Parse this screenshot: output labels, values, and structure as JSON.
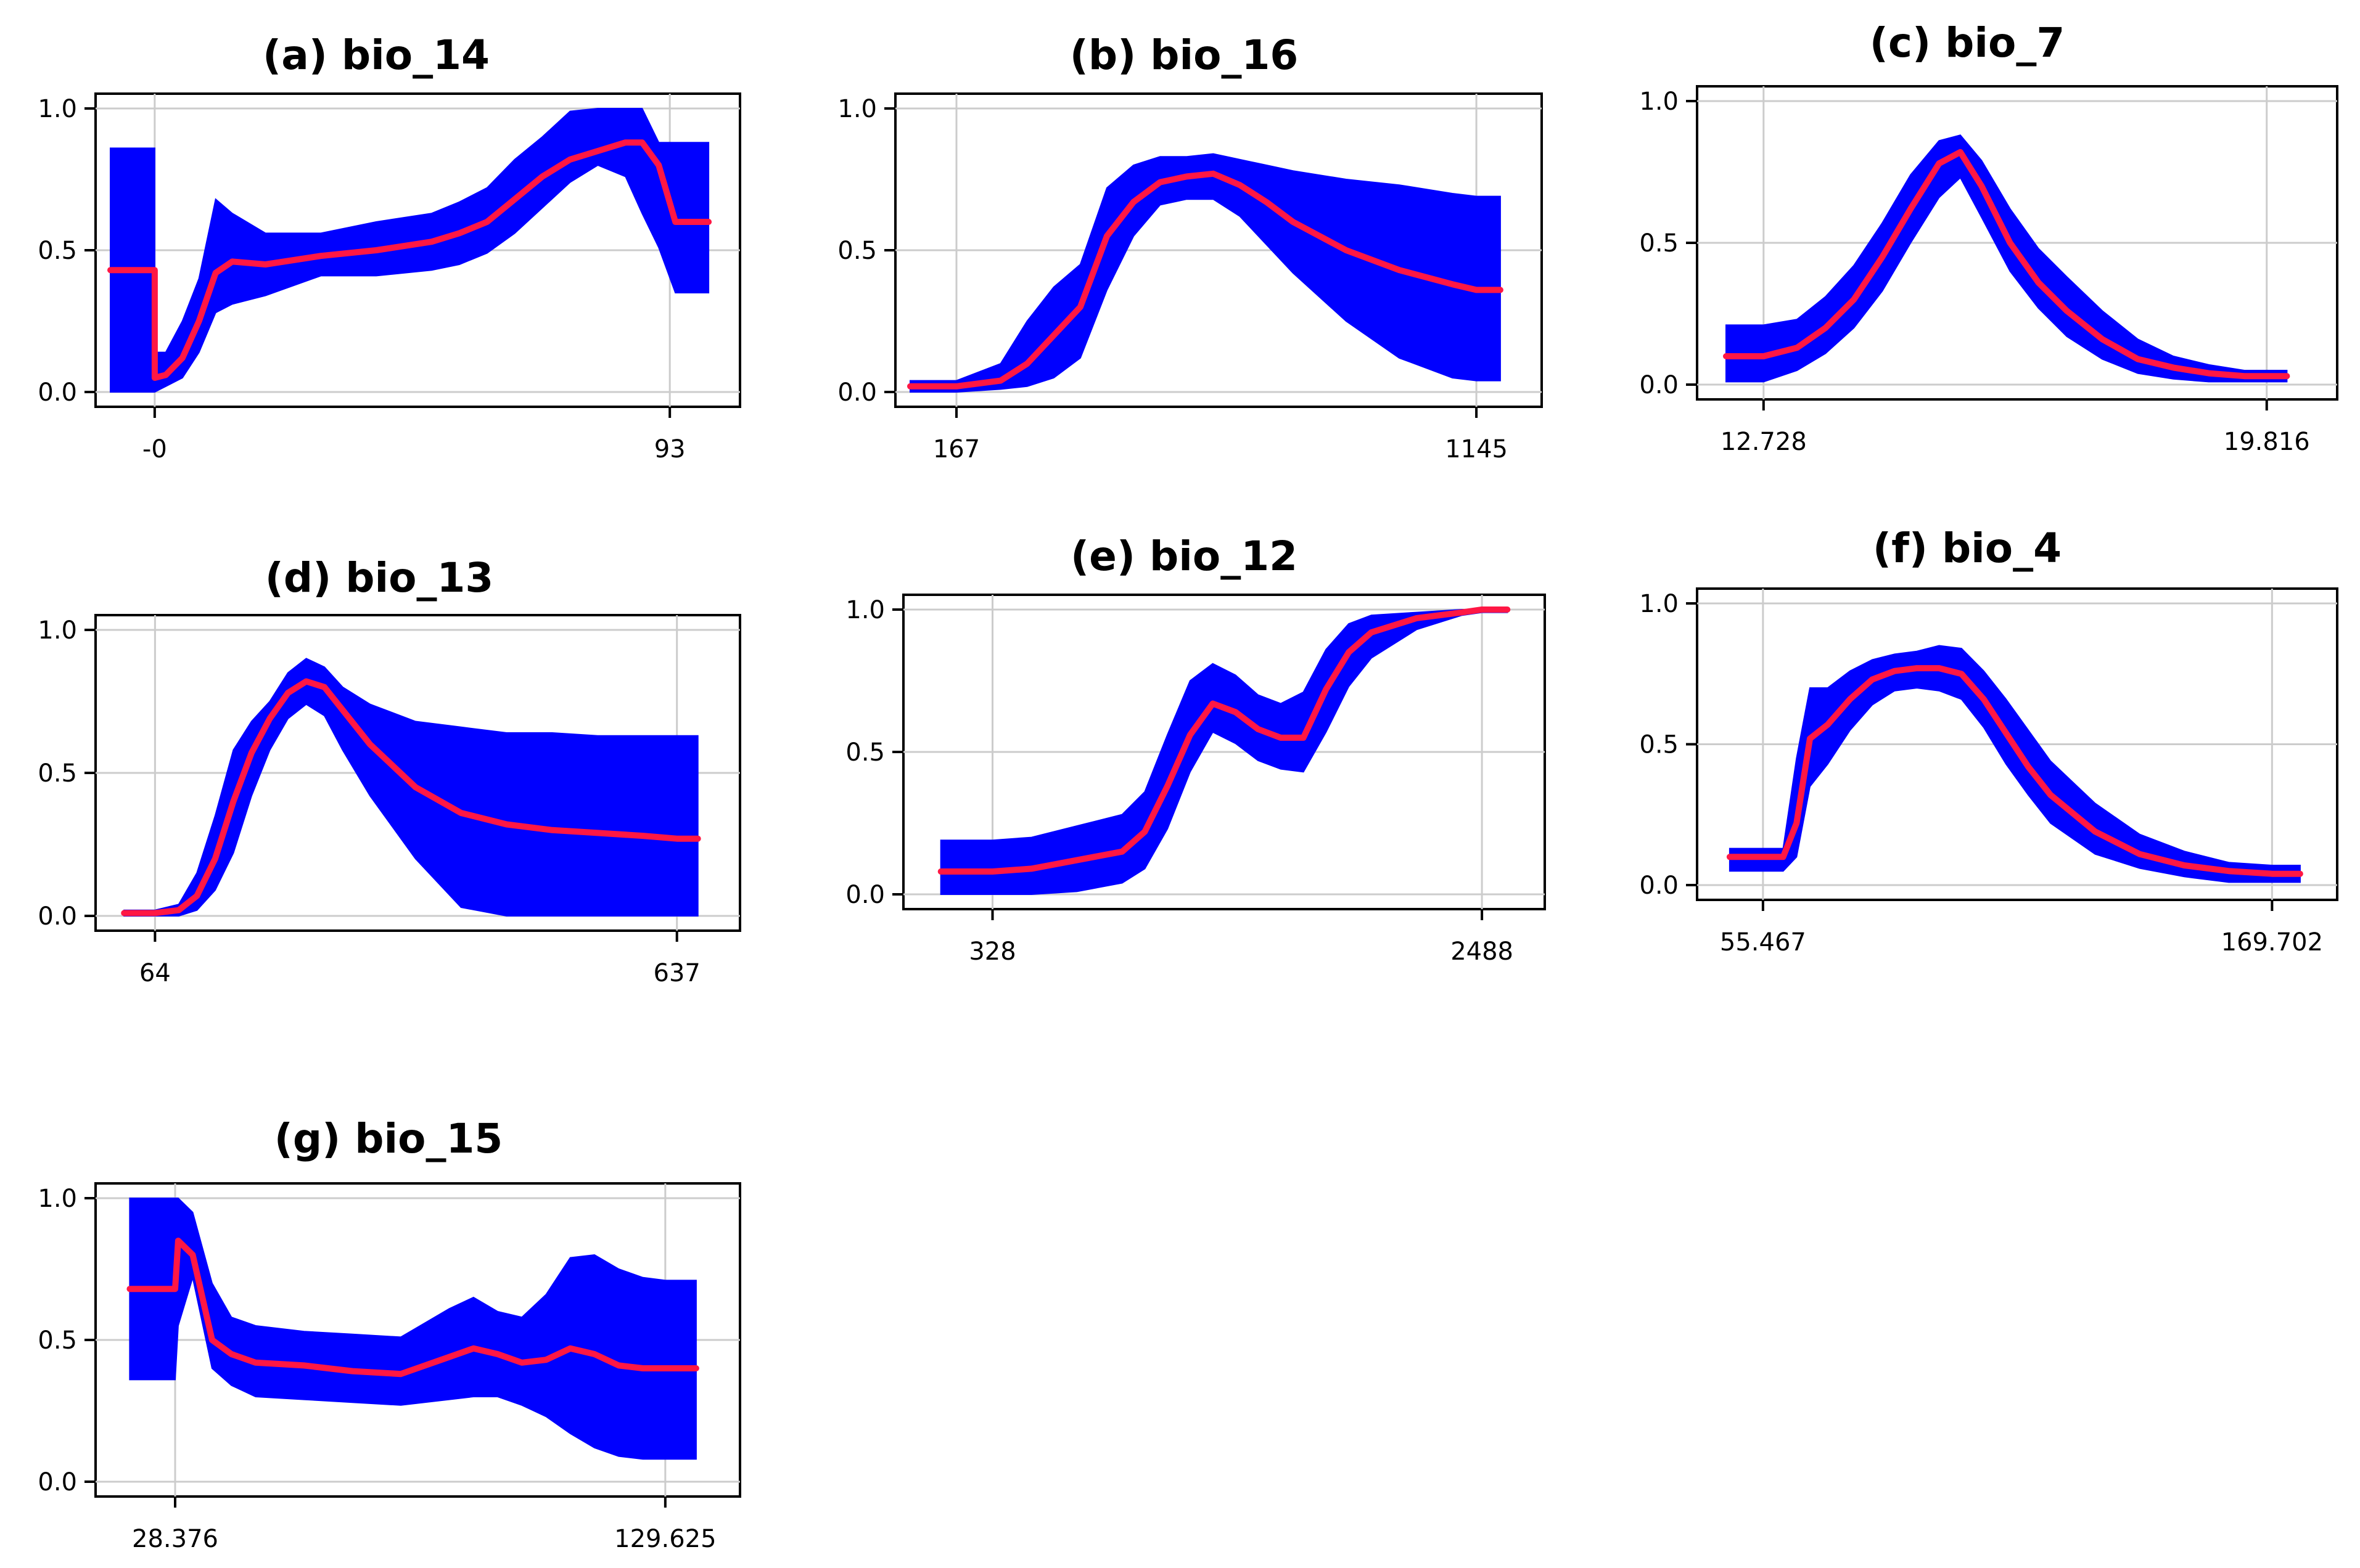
{
  "colors": {
    "band": "#0000ff",
    "line": "#ff1744",
    "grid": "#cccccc",
    "axis": "#000000"
  },
  "chart_data": [
    {
      "type": "area",
      "title": "(a) bio_14",
      "yticks": [
        "0.0",
        "0.5",
        "1.0"
      ],
      "xticks": [
        {
          "label": "-0",
          "value": 0
        },
        {
          "label": "93",
          "value": 93
        }
      ],
      "xlim": [
        -8,
        103
      ],
      "ylim": [
        0,
        1
      ],
      "x": [
        -8,
        0,
        0.01,
        2,
        5,
        8,
        11,
        14,
        20,
        30,
        40,
        50,
        55,
        60,
        65,
        70,
        75,
        80,
        85,
        88,
        91,
        94,
        100
      ],
      "mean": [
        0.43,
        0.43,
        0.05,
        0.06,
        0.12,
        0.25,
        0.42,
        0.46,
        0.45,
        0.48,
        0.5,
        0.53,
        0.56,
        0.6,
        0.68,
        0.76,
        0.82,
        0.85,
        0.88,
        0.88,
        0.8,
        0.6,
        0.6
      ],
      "upper": [
        0.86,
        0.86,
        0.14,
        0.14,
        0.25,
        0.4,
        0.68,
        0.63,
        0.56,
        0.56,
        0.6,
        0.63,
        0.67,
        0.72,
        0.82,
        0.9,
        0.99,
        1.0,
        1.0,
        1.0,
        0.88,
        0.88,
        0.88
      ],
      "lower": [
        0.0,
        0.0,
        0.0,
        0.02,
        0.05,
        0.14,
        0.28,
        0.31,
        0.34,
        0.41,
        0.41,
        0.43,
        0.45,
        0.49,
        0.56,
        0.65,
        0.74,
        0.8,
        0.76,
        0.63,
        0.51,
        0.35,
        0.35
      ]
    },
    {
      "type": "area",
      "title": "(b) bio_16",
      "yticks": [
        "0.0",
        "0.5",
        "1.0"
      ],
      "xticks": [
        {
          "label": "167",
          "value": 167
        },
        {
          "label": "1145",
          "value": 1145
        }
      ],
      "xlim": [
        80,
        1240
      ],
      "ylim": [
        0,
        1
      ],
      "x": [
        80,
        167,
        250,
        300,
        350,
        400,
        450,
        500,
        550,
        600,
        650,
        700,
        750,
        800,
        900,
        1000,
        1100,
        1145,
        1190
      ],
      "mean": [
        0.02,
        0.02,
        0.04,
        0.1,
        0.2,
        0.3,
        0.55,
        0.67,
        0.74,
        0.76,
        0.77,
        0.73,
        0.67,
        0.6,
        0.5,
        0.43,
        0.38,
        0.36,
        0.36
      ],
      "upper": [
        0.04,
        0.04,
        0.1,
        0.25,
        0.37,
        0.45,
        0.72,
        0.8,
        0.83,
        0.83,
        0.84,
        0.82,
        0.8,
        0.78,
        0.75,
        0.73,
        0.7,
        0.69,
        0.69
      ],
      "lower": [
        0.0,
        0.0,
        0.01,
        0.02,
        0.05,
        0.12,
        0.36,
        0.55,
        0.66,
        0.68,
        0.68,
        0.62,
        0.52,
        0.42,
        0.25,
        0.12,
        0.05,
        0.04,
        0.04
      ]
    },
    {
      "type": "area",
      "title": "(c) bio_7",
      "yticks": [
        "0.0",
        "0.5",
        "1.0"
      ],
      "xticks": [
        {
          "label": "12.728",
          "value": 12.728
        },
        {
          "label": "19.816",
          "value": 19.816
        }
      ],
      "xlim": [
        12.0,
        20.6
      ],
      "ylim": [
        0,
        1
      ],
      "x": [
        12.2,
        12.728,
        13.2,
        13.6,
        14.0,
        14.4,
        14.8,
        15.2,
        15.5,
        15.8,
        16.2,
        16.6,
        17.0,
        17.5,
        18.0,
        18.5,
        19.0,
        19.5,
        20.1
      ],
      "mean": [
        0.1,
        0.1,
        0.13,
        0.2,
        0.3,
        0.45,
        0.62,
        0.78,
        0.82,
        0.7,
        0.5,
        0.36,
        0.26,
        0.16,
        0.09,
        0.06,
        0.04,
        0.03,
        0.03
      ],
      "upper": [
        0.21,
        0.21,
        0.23,
        0.31,
        0.42,
        0.57,
        0.74,
        0.86,
        0.88,
        0.79,
        0.62,
        0.48,
        0.38,
        0.26,
        0.16,
        0.1,
        0.07,
        0.05,
        0.05
      ],
      "lower": [
        0.01,
        0.01,
        0.05,
        0.11,
        0.2,
        0.33,
        0.5,
        0.66,
        0.73,
        0.59,
        0.4,
        0.27,
        0.17,
        0.09,
        0.04,
        0.02,
        0.01,
        0.01,
        0.01
      ]
    },
    {
      "type": "area",
      "title": "(d) bio_13",
      "yticks": [
        "0.0",
        "0.5",
        "1.0"
      ],
      "xticks": [
        {
          "label": "64",
          "value": 64
        },
        {
          "label": "637",
          "value": 637
        }
      ],
      "xlim": [
        15,
        690
      ],
      "ylim": [
        0,
        1
      ],
      "x": [
        30,
        64,
        90,
        110,
        130,
        150,
        170,
        190,
        210,
        230,
        250,
        270,
        300,
        350,
        400,
        450,
        500,
        550,
        600,
        637,
        660
      ],
      "mean": [
        0.01,
        0.01,
        0.02,
        0.07,
        0.2,
        0.4,
        0.57,
        0.69,
        0.78,
        0.82,
        0.8,
        0.72,
        0.6,
        0.45,
        0.36,
        0.32,
        0.3,
        0.29,
        0.28,
        0.27,
        0.27
      ],
      "upper": [
        0.02,
        0.02,
        0.04,
        0.15,
        0.35,
        0.58,
        0.68,
        0.75,
        0.85,
        0.9,
        0.87,
        0.8,
        0.74,
        0.68,
        0.66,
        0.64,
        0.64,
        0.63,
        0.63,
        0.63,
        0.63
      ],
      "lower": [
        0.0,
        0.0,
        0.0,
        0.02,
        0.09,
        0.22,
        0.42,
        0.58,
        0.69,
        0.74,
        0.7,
        0.58,
        0.42,
        0.2,
        0.03,
        0.0,
        0.0,
        0.0,
        0.0,
        0.0,
        0.0
      ]
    },
    {
      "type": "area",
      "title": "(e) bio_12",
      "yticks": [
        "0.0",
        "0.5",
        "1.0"
      ],
      "xticks": [
        {
          "label": "328",
          "value": 328
        },
        {
          "label": "2488",
          "value": 2488
        }
      ],
      "xlim": [
        0,
        2700
      ],
      "ylim": [
        0,
        1
      ],
      "x": [
        100,
        328,
        500,
        700,
        900,
        1000,
        1100,
        1200,
        1300,
        1400,
        1500,
        1600,
        1700,
        1800,
        1900,
        2000,
        2200,
        2400,
        2488,
        2600
      ],
      "mean": [
        0.08,
        0.08,
        0.09,
        0.12,
        0.15,
        0.22,
        0.38,
        0.56,
        0.67,
        0.64,
        0.58,
        0.55,
        0.55,
        0.72,
        0.85,
        0.92,
        0.97,
        0.99,
        1.0,
        1.0
      ],
      "upper": [
        0.19,
        0.19,
        0.2,
        0.24,
        0.28,
        0.36,
        0.56,
        0.75,
        0.81,
        0.77,
        0.7,
        0.67,
        0.71,
        0.86,
        0.95,
        0.98,
        0.99,
        1.0,
        1.0,
        1.0
      ],
      "lower": [
        0.0,
        0.0,
        0.0,
        0.01,
        0.04,
        0.09,
        0.23,
        0.43,
        0.57,
        0.53,
        0.47,
        0.44,
        0.43,
        0.57,
        0.73,
        0.83,
        0.93,
        0.98,
        0.99,
        0.99
      ]
    },
    {
      "type": "area",
      "title": "(f) bio_4",
      "yticks": [
        "0.0",
        "0.5",
        "1.0"
      ],
      "xticks": [
        {
          "label": "55.467",
          "value": 55.467
        },
        {
          "label": "169.702",
          "value": 169.702
        }
      ],
      "xlim": [
        44,
        181
      ],
      "ylim": [
        0,
        1
      ],
      "x": [
        48,
        55.467,
        60,
        63,
        66,
        70,
        75,
        80,
        85,
        90,
        95,
        100,
        105,
        110,
        115,
        120,
        130,
        140,
        150,
        160,
        169.702,
        176
      ],
      "mean": [
        0.1,
        0.1,
        0.1,
        0.22,
        0.52,
        0.57,
        0.66,
        0.73,
        0.76,
        0.77,
        0.77,
        0.75,
        0.66,
        0.54,
        0.42,
        0.32,
        0.19,
        0.11,
        0.07,
        0.05,
        0.04,
        0.04
      ],
      "upper": [
        0.13,
        0.13,
        0.13,
        0.45,
        0.7,
        0.7,
        0.76,
        0.8,
        0.82,
        0.83,
        0.85,
        0.84,
        0.76,
        0.66,
        0.55,
        0.44,
        0.29,
        0.18,
        0.12,
        0.08,
        0.07,
        0.07
      ],
      "lower": [
        0.05,
        0.05,
        0.05,
        0.1,
        0.35,
        0.43,
        0.55,
        0.64,
        0.69,
        0.7,
        0.69,
        0.66,
        0.56,
        0.43,
        0.32,
        0.22,
        0.11,
        0.06,
        0.03,
        0.01,
        0.01,
        0.01
      ]
    },
    {
      "type": "area",
      "title": "(g) bio_15",
      "yticks": [
        "0.0",
        "0.5",
        "1.0"
      ],
      "xticks": [
        {
          "label": "28.376",
          "value": 28.376
        },
        {
          "label": "129.625",
          "value": 129.625
        }
      ],
      "xlim": [
        15,
        142
      ],
      "ylim": [
        0,
        1
      ],
      "x": [
        19,
        28.376,
        29,
        32,
        36,
        40,
        45,
        55,
        65,
        75,
        85,
        90,
        95,
        100,
        105,
        110,
        115,
        120,
        125,
        129.625,
        136
      ],
      "mean": [
        0.68,
        0.68,
        0.85,
        0.8,
        0.5,
        0.45,
        0.42,
        0.41,
        0.39,
        0.38,
        0.44,
        0.47,
        0.45,
        0.42,
        0.43,
        0.47,
        0.45,
        0.41,
        0.4,
        0.4,
        0.4
      ],
      "upper": [
        1.0,
        1.0,
        1.0,
        0.95,
        0.7,
        0.58,
        0.55,
        0.53,
        0.52,
        0.51,
        0.61,
        0.65,
        0.6,
        0.58,
        0.66,
        0.79,
        0.8,
        0.75,
        0.72,
        0.71,
        0.71
      ],
      "lower": [
        0.36,
        0.36,
        0.55,
        0.72,
        0.4,
        0.34,
        0.3,
        0.29,
        0.28,
        0.27,
        0.29,
        0.3,
        0.3,
        0.27,
        0.23,
        0.17,
        0.12,
        0.09,
        0.08,
        0.08,
        0.08
      ]
    }
  ]
}
